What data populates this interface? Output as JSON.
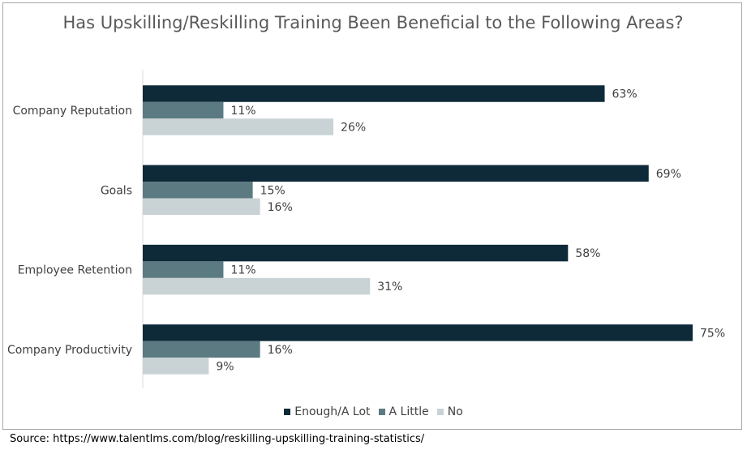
{
  "chart_data": {
    "type": "bar",
    "orientation": "horizontal",
    "title": "Has Upskilling/Reskilling Training Been Beneficial to the Following Areas?",
    "categories": [
      "Company Reputation",
      "Goals",
      "Employee Retention",
      "Company Productivity"
    ],
    "series": [
      {
        "name": "Enough/A Lot",
        "values": [
          63,
          69,
          58,
          75
        ],
        "labels": [
          "63%",
          "69%",
          "58%",
          "75%"
        ],
        "color": "#0e2a38"
      },
      {
        "name": "A Little",
        "values": [
          11,
          15,
          11,
          16
        ],
        "labels": [
          "11%",
          "15%",
          "11%",
          "16%"
        ],
        "color": "#5b7a82"
      },
      {
        "name": "No",
        "values": [
          26,
          16,
          31,
          9
        ],
        "labels": [
          "26%",
          "16%",
          "31%",
          "9%"
        ],
        "color": "#c9d3d5"
      }
    ],
    "xlim": [
      0,
      80
    ],
    "grid": false,
    "legend_position": "bottom"
  },
  "source_text": "Source: https://www.talentlms.com/blog/reskilling-upskilling-training-statistics/"
}
